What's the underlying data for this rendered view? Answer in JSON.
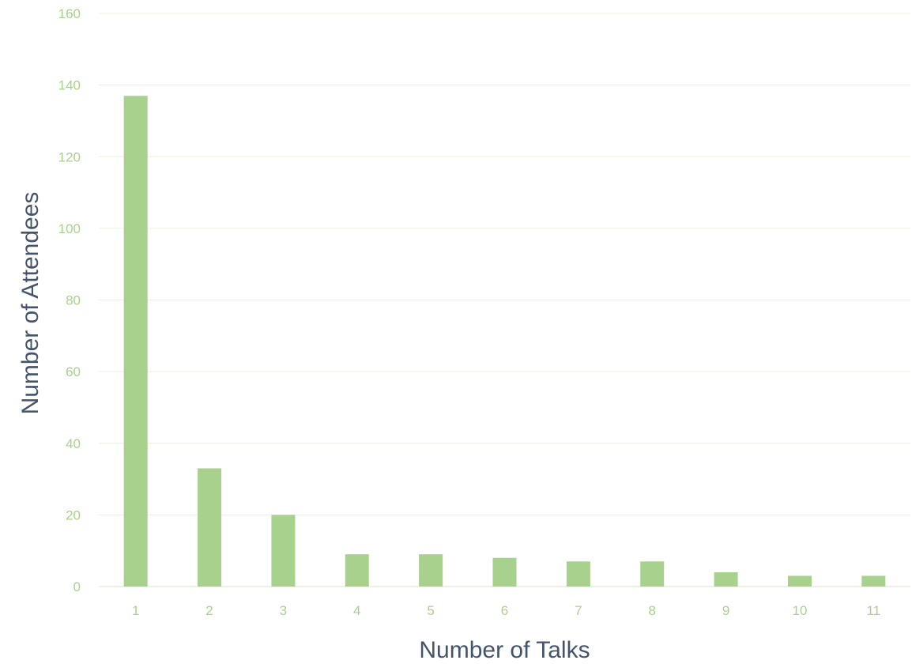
{
  "chart_data": {
    "type": "bar",
    "title": "",
    "xlabel": "Number of Talks",
    "ylabel": "Number of Attendees",
    "categories": [
      "1",
      "2",
      "3",
      "4",
      "5",
      "6",
      "7",
      "8",
      "9",
      "10",
      "11"
    ],
    "values": [
      137,
      33,
      20,
      9,
      9,
      8,
      7,
      7,
      4,
      3,
      3
    ],
    "ylim": [
      0,
      160
    ],
    "yticks": [
      "0",
      "20",
      "40",
      "60",
      "80",
      "100",
      "120",
      "140",
      "160"
    ],
    "grid": true,
    "legend": "none"
  },
  "colors": {
    "bar": "#a9d18e",
    "tick_label": "#a9d18e",
    "grid": "#ebf0e1",
    "baseline": "#e8eddc",
    "axis_title": "#44546a"
  }
}
